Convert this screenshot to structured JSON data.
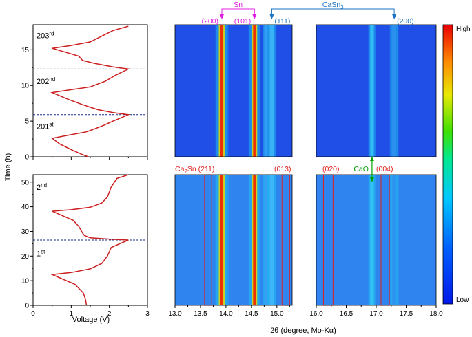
{
  "chart_data": [
    {
      "type": "line",
      "name": "voltage-profile-top",
      "xlabel": "",
      "ylabel": "",
      "xlim": [
        0,
        3
      ],
      "ylim": [
        0,
        18.5
      ],
      "yticks": [
        "0",
        "5",
        "10",
        "15"
      ],
      "cycle_labels": [
        {
          "base": "203",
          "sup": "rd",
          "t": 17
        },
        {
          "base": "202",
          "sup": "nd",
          "t": 10.6
        },
        {
          "base": "201",
          "sup": "st",
          "t": 4.3
        }
      ],
      "cycle_boundaries": [
        5.9,
        12.3
      ],
      "series": [
        {
          "color": "#cc1f1f",
          "points": [
            [
              1.45,
              0
            ],
            [
              1.3,
              0.3
            ],
            [
              1.0,
              1.0
            ],
            [
              0.7,
              1.8
            ],
            [
              0.5,
              2.6
            ],
            [
              0.9,
              3.0
            ],
            [
              1.4,
              3.5
            ],
            [
              1.8,
              4.3
            ],
            [
              2.1,
              5.0
            ],
            [
              2.5,
              5.9
            ],
            [
              2.1,
              6.2
            ],
            [
              1.7,
              6.6
            ],
            [
              1.3,
              7.3
            ],
            [
              0.9,
              8.1
            ],
            [
              0.5,
              9.0
            ],
            [
              1.0,
              9.4
            ],
            [
              1.5,
              9.8
            ],
            [
              1.9,
              10.6
            ],
            [
              2.15,
              11.4
            ],
            [
              2.5,
              12.3
            ],
            [
              2.1,
              12.6
            ],
            [
              1.6,
              13.1
            ],
            [
              1.3,
              13.5
            ],
            [
              1.2,
              14.1
            ],
            [
              0.5,
              15.2
            ],
            [
              1.0,
              15.6
            ],
            [
              1.5,
              16.1
            ],
            [
              1.8,
              16.9
            ],
            [
              2.1,
              17.7
            ],
            [
              2.5,
              18.3
            ]
          ]
        }
      ]
    },
    {
      "type": "line",
      "name": "voltage-profile-bottom",
      "xlabel": "Voltage (V)",
      "ylabel": "Time (h)",
      "xlim": [
        0,
        3
      ],
      "ylim": [
        0,
        53
      ],
      "xticks": [
        "0",
        "1",
        "2",
        "3"
      ],
      "yticks": [
        "0",
        "10",
        "20",
        "30",
        "40",
        "50"
      ],
      "cycle_labels": [
        {
          "base": "2",
          "sup": "nd",
          "t": 48
        },
        {
          "base": "1",
          "sup": "st",
          "t": 21
        }
      ],
      "cycle_boundaries": [
        26.5
      ],
      "series": [
        {
          "color": "#cc1f1f",
          "points": [
            [
              1.4,
              0
            ],
            [
              1.38,
              2
            ],
            [
              1.32,
              5
            ],
            [
              1.1,
              8.5
            ],
            [
              0.5,
              12.5
            ],
            [
              1.0,
              13.3
            ],
            [
              1.5,
              14.8
            ],
            [
              1.8,
              17
            ],
            [
              1.95,
              20
            ],
            [
              2.05,
              23.5
            ],
            [
              2.5,
              26.5
            ],
            [
              2.0,
              26.9
            ],
            [
              1.5,
              27.4
            ],
            [
              1.35,
              28.3
            ],
            [
              1.3,
              29.3
            ],
            [
              1.2,
              32
            ],
            [
              1.05,
              34.5
            ],
            [
              0.5,
              38.2
            ],
            [
              1.0,
              38.8
            ],
            [
              1.5,
              39.8
            ],
            [
              1.8,
              41.5
            ],
            [
              1.95,
              44
            ],
            [
              2.05,
              48
            ],
            [
              2.2,
              51.5
            ],
            [
              2.5,
              53
            ]
          ]
        }
      ]
    },
    {
      "type": "heatmap",
      "name": "in-situ-xrd",
      "xlabel": "2θ (degree, Mo-Kα)",
      "ranges_2theta": [
        [
          13.0,
          15.3
        ],
        [
          16.0,
          18.0
        ]
      ],
      "xticks_left": [
        "13.0",
        "13.5",
        "14.0",
        "14.5",
        "15.0"
      ],
      "xticks_right": [
        "16.0",
        "16.5",
        "17.0",
        "17.5",
        "18.0"
      ],
      "colorbar": {
        "high": "High",
        "low": "Low"
      },
      "sn_label": "Sn",
      "sn_color": "#e020e0",
      "sn_peaks": [
        {
          "label": "(200)",
          "pos": 13.92
        },
        {
          "label": "(101)",
          "pos": 14.56
        }
      ],
      "casn3_label": "CaSn3",
      "casn3_color": "#1a73c0",
      "casn3_peaks": [
        {
          "label": "(111)",
          "pos": 14.9
        },
        {
          "label": "(200)",
          "pos": 17.3
        }
      ],
      "ca2sn_label": "Ca2Sn (211)",
      "ca2sn_color": "#e02020",
      "ca2sn_other_peaks": [
        "(013)",
        "(020)",
        "(004)"
      ],
      "cao_label": "CaO",
      "cao_color": "#00a000",
      "cao_pos": 16.93,
      "ca2sn_boxes": [
        [
          13.58,
          13.72
        ],
        [
          15.1,
          15.25
        ],
        [
          16.12,
          16.28
        ],
        [
          17.08,
          17.22
        ]
      ]
    }
  ]
}
